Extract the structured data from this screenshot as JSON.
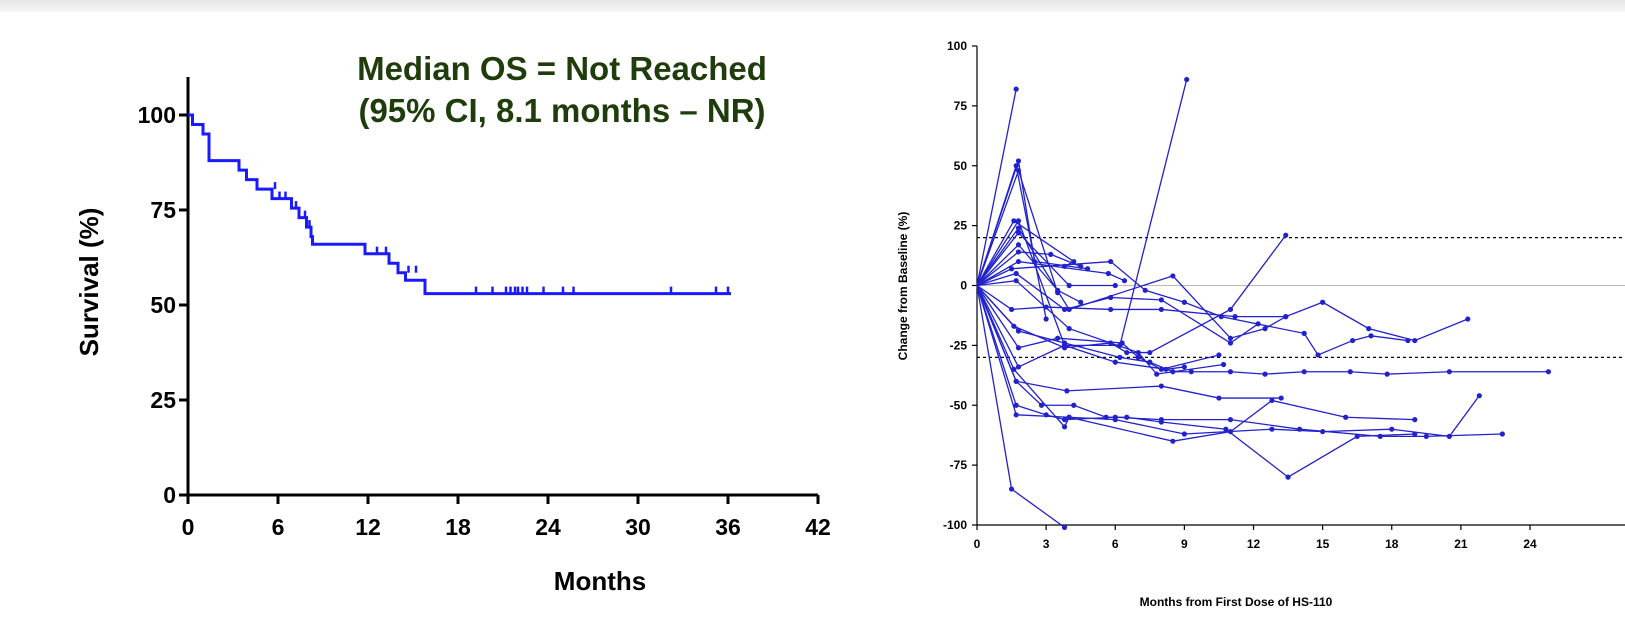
{
  "chart_data": [
    {
      "type": "line",
      "subtype": "kaplan-meier",
      "title": "",
      "annotation_lines": [
        "Median OS = Not Reached",
        "(95% CI, 8.1 months – NR)"
      ],
      "xlabel": "Months",
      "ylabel": "Survival (%)",
      "xlim": [
        0,
        42
      ],
      "ylim": [
        0,
        110
      ],
      "xticks": [
        0,
        6,
        12,
        18,
        24,
        30,
        36,
        42
      ],
      "yticks": [
        0,
        25,
        50,
        75,
        100
      ],
      "grid": false,
      "line_color": "#1a1aff",
      "steps": [
        [
          0,
          100
        ],
        [
          0.3,
          97.5
        ],
        [
          1.0,
          95
        ],
        [
          1.4,
          88
        ],
        [
          3.4,
          85.5
        ],
        [
          3.9,
          83
        ],
        [
          4.6,
          80.5
        ],
        [
          5.6,
          78
        ],
        [
          6.9,
          75.5
        ],
        [
          7.4,
          73
        ],
        [
          7.9,
          70.5
        ],
        [
          8.2,
          68
        ],
        [
          8.3,
          66
        ],
        [
          11.8,
          63.5
        ],
        [
          13.4,
          61
        ],
        [
          14.0,
          58.5
        ],
        [
          14.5,
          56.5
        ],
        [
          15.8,
          53
        ]
      ],
      "end_month": 36.2,
      "censor_marks": [
        [
          5.8,
          80.5
        ],
        [
          6.1,
          78
        ],
        [
          6.5,
          78
        ],
        [
          7.2,
          75.5
        ],
        [
          7.8,
          73
        ],
        [
          8.1,
          70.5
        ],
        [
          12.6,
          63.5
        ],
        [
          13.2,
          63.5
        ],
        [
          14.7,
          58.5
        ],
        [
          15.2,
          58.5
        ],
        [
          19.2,
          53
        ],
        [
          20.3,
          53
        ],
        [
          21.2,
          53
        ],
        [
          21.5,
          53
        ],
        [
          21.8,
          53
        ],
        [
          22.0,
          53
        ],
        [
          22.3,
          53
        ],
        [
          22.6,
          53
        ],
        [
          23.7,
          53
        ],
        [
          25.0,
          53
        ],
        [
          25.7,
          53
        ],
        [
          32.2,
          53
        ],
        [
          35.2,
          53
        ],
        [
          36.0,
          53
        ]
      ]
    },
    {
      "type": "line",
      "subtype": "spider",
      "title": "",
      "xlabel": "Months from First Dose of HS-110",
      "ylabel": "Change from Baseline (%)",
      "xlim": [
        0,
        27
      ],
      "ylim": [
        -100,
        100
      ],
      "xticks": [
        0,
        3,
        6,
        9,
        12,
        15,
        18,
        21,
        24
      ],
      "yticks": [
        100,
        75,
        50,
        25,
        0,
        -25,
        -50,
        -75,
        -100
      ],
      "reference_lines": [
        20,
        -30
      ],
      "line_color": "#2222cc",
      "series": [
        {
          "points": [
            [
              0,
              0
            ],
            [
              1.7,
              82
            ]
          ]
        },
        {
          "points": [
            [
              0,
              0
            ],
            [
              1.8,
              52
            ],
            [
              2.5,
              10
            ],
            [
              4.8,
              7
            ]
          ]
        },
        {
          "points": [
            [
              0,
              0
            ],
            [
              1.7,
              50
            ],
            [
              3.0,
              -14
            ]
          ]
        },
        {
          "points": [
            [
              0,
              0
            ],
            [
              1.8,
              48
            ],
            [
              3.5,
              -3
            ]
          ]
        },
        {
          "points": [
            [
              0,
              0
            ],
            [
              1.6,
              27
            ],
            [
              4.2,
              10
            ],
            [
              3.8,
              8
            ]
          ]
        },
        {
          "points": [
            [
              0,
              0
            ],
            [
              1.8,
              27
            ],
            [
              3.8,
              -25
            ],
            [
              6.2,
              -25
            ],
            [
              9.1,
              86
            ]
          ]
        },
        {
          "points": [
            [
              0,
              0
            ],
            [
              1.8,
              24
            ],
            [
              4.0,
              -10
            ],
            [
              8.5,
              4
            ],
            [
              11.0,
              -22
            ],
            [
              12.5,
              -18
            ],
            [
              13.4,
              -13
            ]
          ]
        },
        {
          "points": [
            [
              0,
              0
            ],
            [
              1.8,
              22
            ],
            [
              4.0,
              0
            ],
            [
              6.0,
              0
            ]
          ]
        },
        {
          "points": [
            [
              0,
              0
            ],
            [
              1.8,
              17
            ],
            [
              3.5,
              -2
            ],
            [
              4.5,
              -7
            ]
          ]
        },
        {
          "points": [
            [
              0,
              0
            ],
            [
              1.8,
              14
            ],
            [
              3.2,
              13
            ],
            [
              4.5,
              8
            ]
          ]
        },
        {
          "points": [
            [
              0,
              0
            ],
            [
              1.8,
              10
            ],
            [
              5.7,
              5
            ],
            [
              6.4,
              2
            ]
          ]
        },
        {
          "points": [
            [
              0,
              0
            ],
            [
              1.5,
              7
            ],
            [
              5.8,
              10
            ],
            [
              7.3,
              -2
            ],
            [
              9.0,
              -7
            ],
            [
              10.6,
              -13
            ],
            [
              14.2,
              -20
            ],
            [
              14.8,
              -29
            ],
            [
              16.3,
              -23
            ],
            [
              17.1,
              -21
            ],
            [
              18.7,
              -23
            ]
          ]
        },
        {
          "points": [
            [
              0,
              0
            ],
            [
              1.7,
              5
            ],
            [
              3.8,
              -10
            ],
            [
              5.8,
              -5
            ],
            [
              8.0,
              -6
            ],
            [
              11.0,
              -24
            ],
            [
              12.2,
              -16
            ]
          ]
        },
        {
          "points": [
            [
              0,
              0
            ],
            [
              1.7,
              2
            ],
            [
              4.0,
              -18
            ],
            [
              7.0,
              -28
            ],
            [
              7.8,
              -37
            ],
            [
              10.7,
              -33
            ]
          ]
        },
        {
          "points": [
            [
              0,
              0
            ],
            [
              1.5,
              -10
            ],
            [
              3.0,
              -9
            ],
            [
              5.8,
              -10
            ],
            [
              8.0,
              -10
            ],
            [
              11.2,
              -13
            ],
            [
              13.4,
              -13
            ],
            [
              15.0,
              -7
            ],
            [
              17.0,
              -18
            ],
            [
              19.0,
              -23
            ],
            [
              21.3,
              -14
            ]
          ]
        },
        {
          "points": [
            [
              0,
              0
            ],
            [
              1.6,
              -17
            ],
            [
              3.8,
              -26
            ],
            [
              5.8,
              -24
            ],
            [
              6.5,
              -28
            ],
            [
              7.5,
              -28
            ],
            [
              11.0,
              -10
            ],
            [
              13.4,
              21
            ]
          ]
        },
        {
          "points": [
            [
              0,
              0
            ],
            [
              1.8,
              -19
            ],
            [
              3.8,
              -24
            ],
            [
              6.2,
              -30
            ],
            [
              7.5,
              -32
            ],
            [
              8.5,
              -36
            ],
            [
              9.3,
              -36
            ],
            [
              11.0,
              -36
            ],
            [
              12.5,
              -37
            ],
            [
              14.2,
              -36
            ],
            [
              16.2,
              -36
            ],
            [
              17.8,
              -37
            ],
            [
              20.5,
              -36
            ],
            [
              24.8,
              -36
            ]
          ]
        },
        {
          "points": [
            [
              0,
              0
            ],
            [
              1.8,
              -26
            ],
            [
              3.5,
              -22
            ],
            [
              6.3,
              -24
            ],
            [
              7.0,
              -30
            ],
            [
              8.0,
              -35
            ],
            [
              10.5,
              -29
            ]
          ]
        },
        {
          "points": [
            [
              0,
              0
            ],
            [
              1.8,
              -34
            ],
            [
              3.8,
              -25
            ],
            [
              6.0,
              -32
            ],
            [
              8.2,
              -35
            ],
            [
              9.0,
              -34
            ]
          ]
        },
        {
          "points": [
            [
              0,
              0
            ],
            [
              1.7,
              -40
            ],
            [
              2.8,
              -50
            ],
            [
              4.2,
              -50
            ],
            [
              5.6,
              -55
            ],
            [
              6.5,
              -55
            ],
            [
              8.0,
              -57
            ],
            [
              10.8,
              -60
            ],
            [
              13.5,
              -80
            ],
            [
              16.5,
              -63
            ],
            [
              19.0,
              -62
            ]
          ]
        },
        {
          "points": [
            [
              0,
              0
            ],
            [
              1.7,
              -50
            ],
            [
              3.0,
              -54
            ],
            [
              3.8,
              -56
            ],
            [
              6.0,
              -55
            ],
            [
              8.0,
              -56
            ],
            [
              11.0,
              -56
            ],
            [
              14.0,
              -60
            ],
            [
              17.5,
              -63
            ],
            [
              19.5,
              -63
            ],
            [
              22.8,
              -62
            ]
          ]
        },
        {
          "points": [
            [
              0,
              0
            ],
            [
              1.7,
              -54
            ],
            [
              4.0,
              -55
            ],
            [
              6.0,
              -56
            ],
            [
              9.0,
              -62
            ],
            [
              12.8,
              -60
            ],
            [
              15.0,
              -61
            ],
            [
              18.0,
              -60
            ],
            [
              20.5,
              -63
            ],
            [
              21.8,
              -46
            ]
          ]
        },
        {
          "points": [
            [
              0,
              0
            ],
            [
              1.6,
              -35
            ],
            [
              3.8,
              -59
            ],
            [
              4.0,
              -55
            ],
            [
              8.5,
              -65
            ],
            [
              11.0,
              -61
            ],
            [
              12.8,
              -48
            ],
            [
              16.0,
              -55
            ],
            [
              19.0,
              -56
            ]
          ]
        },
        {
          "points": [
            [
              0,
              0
            ],
            [
              1.7,
              -40
            ],
            [
              3.9,
              -44
            ],
            [
              8.0,
              -42
            ],
            [
              10.5,
              -47
            ],
            [
              13.2,
              -47
            ]
          ]
        },
        {
          "points": [
            [
              0,
              0
            ],
            [
              1.5,
              -85
            ],
            [
              3.8,
              -101
            ]
          ]
        }
      ]
    }
  ]
}
